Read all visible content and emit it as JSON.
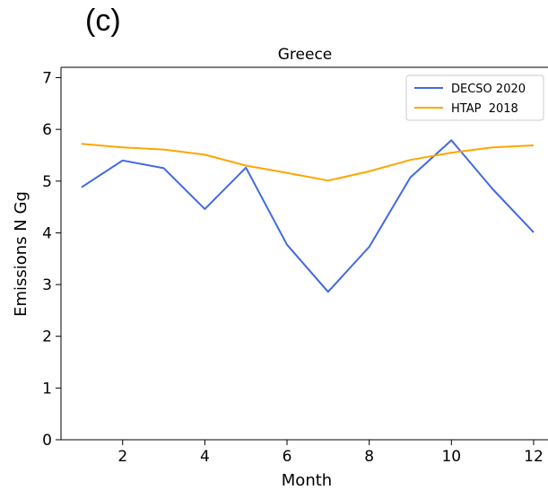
{
  "panel_label": "(c)",
  "chart_data": {
    "type": "line",
    "title": "Greece",
    "xlabel": "Month",
    "ylabel": "Emissions N Gg",
    "x": [
      1,
      2,
      3,
      4,
      5,
      6,
      7,
      8,
      9,
      10,
      11,
      12
    ],
    "xlim": [
      0.5,
      12.35
    ],
    "ylim": [
      0,
      7.2
    ],
    "xticks": [
      2,
      4,
      6,
      8,
      10,
      12
    ],
    "yticks": [
      0,
      1,
      2,
      3,
      4,
      5,
      6,
      7
    ],
    "grid": false,
    "legend_position": "top-right",
    "series": [
      {
        "name": "DECSO 2020",
        "color": "#4169e1",
        "values": [
          4.88,
          5.4,
          5.25,
          4.46,
          5.26,
          3.77,
          2.86,
          3.73,
          5.07,
          5.79,
          4.85,
          4.01
        ]
      },
      {
        "name": "HTAP  2018",
        "color": "#ffa500",
        "values": [
          5.72,
          5.65,
          5.61,
          5.51,
          5.3,
          5.16,
          5.01,
          5.19,
          5.41,
          5.55,
          5.65,
          5.69
        ]
      }
    ]
  }
}
